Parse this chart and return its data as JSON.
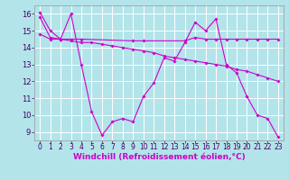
{
  "background_color": "#b3e4ea",
  "line_color": "#cc00cc",
  "grid_color": "#ffffff",
  "xlabel": "Windchill (Refroidissement éolien,°C)",
  "xlabel_fontsize": 6.5,
  "xtick_fontsize": 5.5,
  "ytick_fontsize": 6,
  "ylim": [
    8.5,
    16.5
  ],
  "xlim": [
    -0.5,
    23.5
  ],
  "yticks": [
    9,
    10,
    11,
    12,
    13,
    14,
    15,
    16
  ],
  "xticks": [
    0,
    1,
    2,
    3,
    4,
    5,
    6,
    7,
    8,
    9,
    10,
    11,
    12,
    13,
    14,
    15,
    16,
    17,
    18,
    19,
    20,
    21,
    22,
    23
  ],
  "series": [
    {
      "x": [
        0,
        1,
        2,
        3,
        4,
        5,
        6,
        7,
        8,
        9,
        10,
        11,
        12,
        13,
        14,
        15,
        16,
        17,
        18,
        19,
        20,
        21,
        22,
        23
      ],
      "y": [
        16.1,
        15.0,
        14.5,
        16.0,
        13.0,
        10.2,
        8.8,
        9.6,
        9.8,
        9.6,
        11.1,
        11.9,
        13.4,
        13.2,
        14.3,
        15.5,
        15.0,
        15.7,
        13.0,
        12.5,
        11.1,
        10.0,
        9.8,
        8.7
      ]
    },
    {
      "x": [
        0,
        1,
        2,
        3,
        4,
        9,
        10,
        14,
        15,
        16,
        17,
        18,
        19,
        20,
        21,
        22,
        23
      ],
      "y": [
        14.8,
        14.5,
        14.5,
        14.5,
        14.5,
        14.4,
        14.4,
        14.4,
        14.6,
        14.5,
        14.5,
        14.5,
        14.5,
        14.5,
        14.5,
        14.5,
        14.5
      ]
    },
    {
      "x": [
        0,
        1,
        2,
        3,
        4,
        5,
        6,
        7,
        8,
        9,
        10,
        11,
        12,
        13,
        14,
        15,
        16,
        17,
        18,
        19,
        20,
        21,
        22,
        23
      ],
      "y": [
        15.8,
        14.6,
        14.5,
        14.4,
        14.3,
        14.3,
        14.2,
        14.1,
        14.0,
        13.9,
        13.8,
        13.7,
        13.5,
        13.4,
        13.3,
        13.2,
        13.1,
        13.0,
        12.9,
        12.7,
        12.6,
        12.4,
        12.2,
        12.0
      ]
    }
  ],
  "figwidth": 3.2,
  "figheight": 2.0,
  "dpi": 100
}
